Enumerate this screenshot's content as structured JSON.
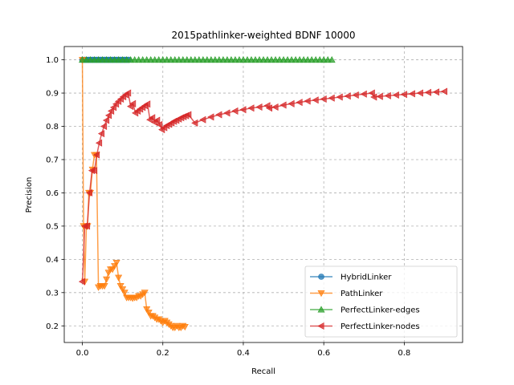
{
  "chart_data": {
    "type": "line",
    "title": "2015pathlinker-weighted BDNF 10000",
    "xlabel": "Recall",
    "ylabel": "Precision",
    "xlim": [
      -0.045,
      0.945
    ],
    "ylim": [
      0.15,
      1.04
    ],
    "xticks": [
      0.0,
      0.2,
      0.4,
      0.6,
      0.8
    ],
    "xtick_labels": [
      "0.0",
      "0.2",
      "0.4",
      "0.6",
      "0.8"
    ],
    "yticks": [
      0.2,
      0.3,
      0.4,
      0.5,
      0.6,
      0.7,
      0.8,
      0.9,
      1.0
    ],
    "ytick_labels": [
      "0.2",
      "0.3",
      "0.4",
      "0.5",
      "0.6",
      "0.7",
      "0.8",
      "0.9",
      "1.0"
    ],
    "grid": true,
    "legend_position": "lower-right",
    "series": [
      {
        "name": "HybridLinker",
        "color": "#1f77b4",
        "marker": "circle",
        "x": [
          0.0,
          0.005,
          0.01,
          0.015,
          0.02,
          0.025,
          0.03,
          0.035,
          0.04,
          0.045,
          0.05,
          0.055,
          0.06,
          0.065,
          0.07,
          0.075,
          0.08,
          0.085,
          0.09,
          0.095,
          0.1,
          0.105,
          0.11,
          0.115
        ],
        "y": [
          1.0,
          1.0,
          1.0,
          1.0,
          1.0,
          1.0,
          1.0,
          1.0,
          1.0,
          1.0,
          1.0,
          1.0,
          1.0,
          1.0,
          1.0,
          1.0,
          1.0,
          1.0,
          1.0,
          1.0,
          1.0,
          1.0,
          1.0,
          1.0
        ]
      },
      {
        "name": "PathLinker",
        "color": "#ff7f0e",
        "marker": "triangle-down",
        "x": [
          0.0,
          0.003,
          0.006,
          0.01,
          0.013,
          0.016,
          0.02,
          0.025,
          0.03,
          0.035,
          0.04,
          0.045,
          0.05,
          0.055,
          0.06,
          0.065,
          0.07,
          0.075,
          0.08,
          0.085,
          0.09,
          0.095,
          0.1,
          0.105,
          0.11,
          0.115,
          0.12,
          0.125,
          0.13,
          0.135,
          0.14,
          0.145,
          0.15,
          0.155,
          0.16,
          0.165,
          0.17,
          0.175,
          0.18,
          0.185,
          0.19,
          0.195,
          0.2,
          0.205,
          0.21,
          0.215,
          0.22,
          0.225,
          0.23,
          0.235,
          0.24,
          0.245,
          0.25,
          0.255
        ],
        "y": [
          1.0,
          0.5,
          0.333,
          0.5,
          0.5,
          0.6,
          0.6,
          0.67,
          0.714,
          0.714,
          0.316,
          0.32,
          0.32,
          0.32,
          0.34,
          0.36,
          0.37,
          0.37,
          0.38,
          0.39,
          0.345,
          0.32,
          0.31,
          0.3,
          0.285,
          0.285,
          0.285,
          0.283,
          0.285,
          0.285,
          0.29,
          0.29,
          0.295,
          0.3,
          0.25,
          0.24,
          0.23,
          0.23,
          0.225,
          0.22,
          0.22,
          0.215,
          0.21,
          0.215,
          0.21,
          0.205,
          0.2,
          0.195,
          0.195,
          0.2,
          0.195,
          0.195,
          0.2,
          0.197
        ]
      },
      {
        "name": "PerfectLinker-edges",
        "color": "#2ca02c",
        "marker": "triangle-up",
        "x": [
          0.0,
          0.01,
          0.02,
          0.03,
          0.04,
          0.05,
          0.06,
          0.07,
          0.08,
          0.09,
          0.1,
          0.11,
          0.12,
          0.13,
          0.14,
          0.15,
          0.16,
          0.17,
          0.18,
          0.19,
          0.2,
          0.21,
          0.22,
          0.23,
          0.24,
          0.25,
          0.26,
          0.27,
          0.28,
          0.29,
          0.3,
          0.31,
          0.32,
          0.33,
          0.34,
          0.35,
          0.36,
          0.37,
          0.38,
          0.39,
          0.4,
          0.41,
          0.42,
          0.43,
          0.44,
          0.45,
          0.46,
          0.47,
          0.48,
          0.49,
          0.5,
          0.51,
          0.52,
          0.53,
          0.54,
          0.55,
          0.56,
          0.57,
          0.58,
          0.59,
          0.6,
          0.61,
          0.62
        ],
        "y": [
          1.0,
          1.0,
          1.0,
          1.0,
          1.0,
          1.0,
          1.0,
          1.0,
          1.0,
          1.0,
          1.0,
          1.0,
          1.0,
          1.0,
          1.0,
          1.0,
          1.0,
          1.0,
          1.0,
          1.0,
          1.0,
          1.0,
          1.0,
          1.0,
          1.0,
          1.0,
          1.0,
          1.0,
          1.0,
          1.0,
          1.0,
          1.0,
          1.0,
          1.0,
          1.0,
          1.0,
          1.0,
          1.0,
          1.0,
          1.0,
          1.0,
          1.0,
          1.0,
          1.0,
          1.0,
          1.0,
          1.0,
          1.0,
          1.0,
          1.0,
          1.0,
          1.0,
          1.0,
          1.0,
          1.0,
          1.0,
          1.0,
          1.0,
          1.0,
          1.0,
          1.0,
          1.0,
          1.0
        ]
      },
      {
        "name": "PerfectLinker-nodes",
        "color": "#d62728",
        "marker": "triangle-left",
        "x": [
          0.0,
          0.006,
          0.012,
          0.018,
          0.024,
          0.03,
          0.036,
          0.042,
          0.048,
          0.054,
          0.06,
          0.066,
          0.072,
          0.078,
          0.084,
          0.09,
          0.096,
          0.102,
          0.108,
          0.114,
          0.12,
          0.126,
          0.132,
          0.138,
          0.144,
          0.15,
          0.156,
          0.162,
          0.168,
          0.174,
          0.18,
          0.186,
          0.192,
          0.198,
          0.204,
          0.21,
          0.216,
          0.222,
          0.228,
          0.234,
          0.24,
          0.246,
          0.252,
          0.258,
          0.264,
          0.28,
          0.3,
          0.32,
          0.34,
          0.36,
          0.38,
          0.4,
          0.42,
          0.44,
          0.46,
          0.465,
          0.48,
          0.5,
          0.52,
          0.54,
          0.56,
          0.58,
          0.6,
          0.62,
          0.64,
          0.66,
          0.68,
          0.7,
          0.72,
          0.725,
          0.74,
          0.76,
          0.78,
          0.8,
          0.82,
          0.84,
          0.86,
          0.88,
          0.9
        ],
        "y": [
          0.333,
          0.5,
          0.5,
          0.6,
          0.667,
          0.667,
          0.714,
          0.75,
          0.778,
          0.8,
          0.818,
          0.833,
          0.846,
          0.857,
          0.867,
          0.875,
          0.882,
          0.889,
          0.895,
          0.9,
          0.86,
          0.868,
          0.84,
          0.846,
          0.852,
          0.857,
          0.862,
          0.867,
          0.82,
          0.826,
          0.812,
          0.818,
          0.805,
          0.79,
          0.796,
          0.802,
          0.806,
          0.81,
          0.815,
          0.818,
          0.822,
          0.826,
          0.829,
          0.832,
          0.835,
          0.81,
          0.82,
          0.828,
          0.835,
          0.84,
          0.846,
          0.85,
          0.855,
          0.858,
          0.862,
          0.855,
          0.858,
          0.864,
          0.868,
          0.872,
          0.876,
          0.879,
          0.882,
          0.885,
          0.888,
          0.891,
          0.894,
          0.897,
          0.9,
          0.888,
          0.89,
          0.892,
          0.894,
          0.896,
          0.898,
          0.9,
          0.902,
          0.903,
          0.905
        ]
      }
    ]
  }
}
